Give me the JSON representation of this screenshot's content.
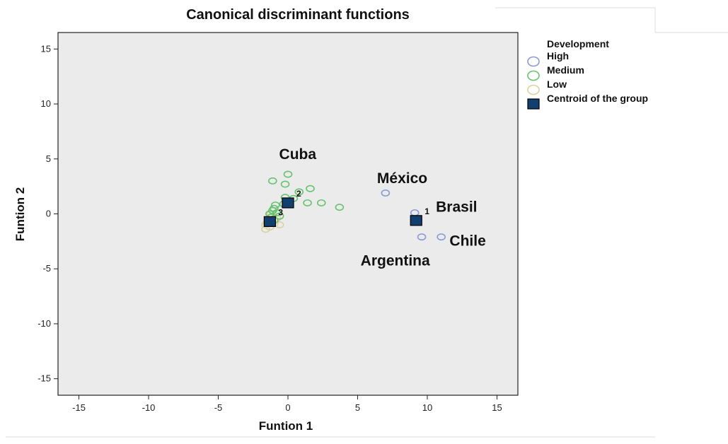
{
  "chart_data": {
    "type": "scatter",
    "title": "Canonical discriminant functions",
    "xlabel": "Funtion 1",
    "ylabel": "Funtion 2",
    "xlim": [
      -16.5,
      16.5
    ],
    "ylim": [
      -16.5,
      16.5
    ],
    "xticks": [
      -15,
      -10,
      -5,
      0,
      5,
      10,
      15
    ],
    "yticks": [
      -15,
      -10,
      -5,
      0,
      5,
      10,
      15
    ],
    "xtick_labels": [
      "-15",
      "-10",
      "-5",
      "0",
      "5",
      "10",
      "15"
    ],
    "ytick_labels": [
      "-15",
      "-10",
      "-5",
      "0",
      "5",
      "10",
      "15"
    ],
    "grid": false,
    "legend_position": "right",
    "legend_title": "Development",
    "colors": {
      "high": "#8a9ad6",
      "medium": "#66c26e",
      "low": "#d9d3a0",
      "centroid": "#123f70",
      "plot_bg": "#ebebeb"
    },
    "series": [
      {
        "name": "High",
        "points": [
          [
            7.0,
            1.9
          ],
          [
            9.1,
            0.1
          ],
          [
            9.6,
            -2.1
          ],
          [
            11.0,
            -2.1
          ]
        ]
      },
      {
        "name": "Medium",
        "points": [
          [
            -1.1,
            3.0
          ],
          [
            -0.2,
            2.7
          ],
          [
            0.0,
            3.6
          ],
          [
            0.8,
            2.0
          ],
          [
            1.6,
            2.3
          ],
          [
            -0.2,
            1.5
          ],
          [
            0.4,
            1.4
          ],
          [
            1.4,
            1.0
          ],
          [
            2.4,
            1.0
          ],
          [
            3.7,
            0.6
          ],
          [
            -0.9,
            0.8
          ],
          [
            -1.0,
            0.5
          ],
          [
            -1.1,
            0.3
          ],
          [
            -0.8,
            0.1
          ],
          [
            -1.3,
            0.0
          ],
          [
            -0.6,
            -0.2
          ],
          [
            -1.2,
            -0.3
          ],
          [
            -1.0,
            -0.6
          ],
          [
            -0.3,
            0.9
          ]
        ]
      },
      {
        "name": "Low",
        "points": [
          [
            -1.2,
            0.0
          ],
          [
            -0.8,
            -0.4
          ],
          [
            -1.4,
            -0.6
          ],
          [
            -1.6,
            -1.0
          ],
          [
            -1.6,
            -1.4
          ],
          [
            -0.6,
            -1.0
          ],
          [
            -1.0,
            -0.9
          ],
          [
            -1.3,
            -1.2
          ],
          [
            -1.5,
            -0.8
          ],
          [
            -1.1,
            -0.2
          ]
        ]
      },
      {
        "name": "Centroid of the group",
        "points": [
          [
            9.2,
            -0.6
          ],
          [
            0.0,
            1.0
          ],
          [
            -1.3,
            -0.7
          ]
        ],
        "labels": [
          "1",
          "2",
          "3"
        ]
      }
    ],
    "annotations": [
      {
        "text": "Cuba",
        "x": 0.7,
        "y": 5.0
      },
      {
        "text": "México",
        "x": 8.2,
        "y": 2.8
      },
      {
        "text": "Brasil",
        "x": 12.1,
        "y": 0.2
      },
      {
        "text": "Chile",
        "x": 12.9,
        "y": -2.9
      },
      {
        "text": "Argentina",
        "x": 7.7,
        "y": -4.7
      }
    ]
  }
}
